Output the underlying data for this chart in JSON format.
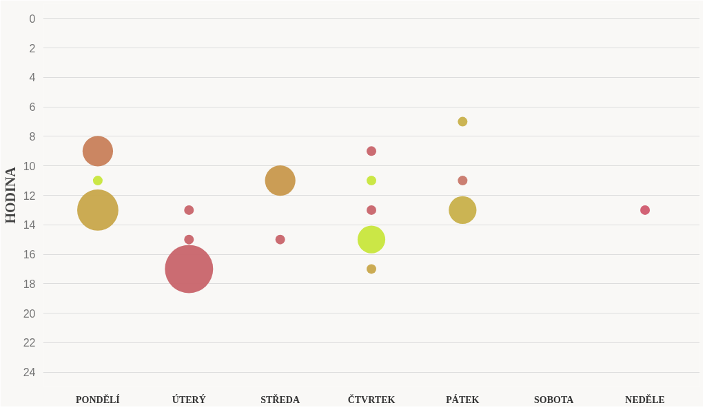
{
  "chart_data": {
    "type": "bubble",
    "ylabel": "HODINA",
    "categories": [
      "PONDĚLÍ",
      "ÚTERÝ",
      "STŘEDA",
      "ČTVRTEK",
      "PÁTEK",
      "SOBOTA",
      "NEDĚLE"
    ],
    "series": [
      {
        "values": [
          9,
          13,
          11,
          9,
          7,
          null,
          13
        ],
        "sizes": [
          0.4,
          0.04,
          0.4,
          0.04,
          0.04,
          null,
          0.04
        ],
        "colors": [
          "#c8805a",
          "#c8646a",
          "#c8984c",
          "#c8646a",
          "#c8b04a",
          null,
          "#d05a6e"
        ]
      },
      {
        "values": [
          11,
          15,
          15,
          11,
          11,
          null,
          null
        ],
        "sizes": [
          0.04,
          0.04,
          0.04,
          0.04,
          0.04,
          null,
          null
        ],
        "colors": [
          "#c8e63c",
          "#c8646a",
          "#c8646a",
          "#c8e63c",
          "#c8786a",
          null,
          null
        ]
      },
      {
        "values": [
          13,
          17,
          null,
          13,
          13,
          null,
          null
        ],
        "sizes": [
          0.73,
          1,
          null,
          0.04,
          0.33,
          null,
          null
        ],
        "colors": [
          "#c8a64a",
          "#c8646a",
          null,
          "#c8646a",
          "#c8b04a",
          null,
          null
        ]
      },
      {
        "values": [
          null,
          null,
          null,
          15,
          null,
          null,
          null
        ],
        "sizes": [
          null,
          null,
          null,
          0.33,
          null,
          null,
          null
        ],
        "colors": [
          null,
          null,
          null,
          "#c8e63c",
          null,
          null,
          null
        ]
      },
      {
        "values": [
          null,
          null,
          null,
          17,
          null,
          null,
          null
        ],
        "sizes": [
          null,
          null,
          null,
          0.04,
          null,
          null,
          null
        ],
        "colors": [
          null,
          null,
          null,
          "#c8a64a",
          null,
          null,
          null
        ]
      }
    ],
    "ylim": [
      25,
      -1
    ],
    "yticks": [
      0,
      2,
      4,
      6,
      8,
      10,
      12,
      14,
      16,
      18,
      20,
      22,
      24
    ],
    "grid": "y"
  }
}
